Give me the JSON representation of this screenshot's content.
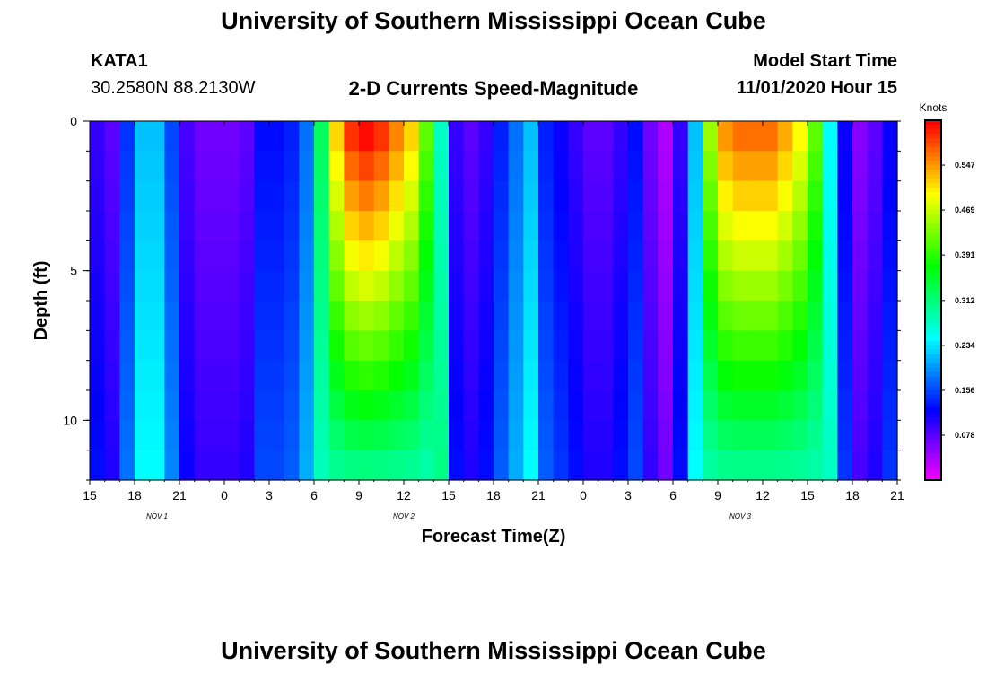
{
  "header": {
    "title": "University of Southern Mississippi Ocean Cube",
    "station": "KATA1",
    "coords": "30.2580N 88.2130W",
    "subtitle": "2-D Currents Speed-Magnitude",
    "model_start_label": "Model Start Time",
    "model_start_value": "11/01/2020 Hour 15",
    "footer_title": "University of Southern Mississippi Ocean Cube"
  },
  "chart_data": {
    "type": "heatmap",
    "title": "2-D Currents Speed-Magnitude",
    "xlabel": "Forecast Time(Z)",
    "ylabel": "Depth (ft)",
    "x_tick_labels": [
      "15",
      "18",
      "21",
      "0",
      "3",
      "6",
      "9",
      "12",
      "15",
      "18",
      "21",
      "0",
      "3",
      "6",
      "9",
      "12",
      "15",
      "18",
      "21"
    ],
    "y_ticks": [
      0,
      5,
      10
    ],
    "ylim": [
      0,
      12
    ],
    "hours_range": [
      0,
      54
    ],
    "date_labels": [
      {
        "text": "NOV 1",
        "hour": 4.5
      },
      {
        "text": "NOV 2",
        "hour": 21
      },
      {
        "text": "NOV 3",
        "hour": 43.5
      }
    ],
    "colorbar": {
      "label": "Knots",
      "range": [
        0.0,
        0.625
      ],
      "ticks": [
        "0.547",
        "0.469",
        "0.391",
        "0.312",
        "0.234",
        "0.156",
        "0.078"
      ],
      "tick_values": [
        0.547,
        0.469,
        0.391,
        0.312,
        0.234,
        0.156,
        0.078
      ]
    },
    "hour_profile": [
      0.1,
      0.08,
      0.15,
      0.22,
      0.22,
      0.16,
      0.09,
      0.07,
      0.07,
      0.07,
      0.08,
      0.13,
      0.13,
      0.14,
      0.18,
      0.33,
      0.52,
      0.6,
      0.62,
      0.6,
      0.56,
      0.52,
      0.42,
      0.28,
      0.1,
      0.08,
      0.1,
      0.14,
      0.18,
      0.22,
      0.14,
      0.12,
      0.1,
      0.08,
      0.08,
      0.1,
      0.13,
      0.07,
      0.04,
      0.1,
      0.22,
      0.45,
      0.55,
      0.57,
      0.57,
      0.57,
      0.54,
      0.5,
      0.42,
      0.25,
      0.12,
      0.06,
      0.08,
      0.12
    ],
    "depth_layers_note": "12 depth layers of 1 ft; surface strongest, bottom layer spreads high-speed band"
  }
}
